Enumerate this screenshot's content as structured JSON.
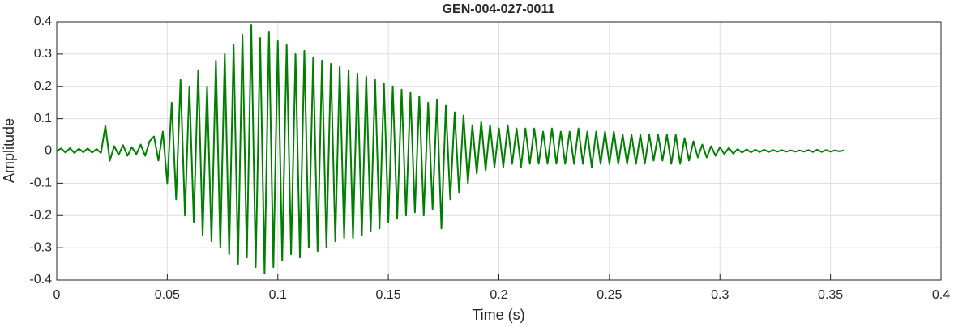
{
  "chart_data": {
    "type": "line",
    "title": "GEN-004-027-0011",
    "xlabel": "Time (s)",
    "ylabel": "Amplitude",
    "color": "#007f00",
    "grid": true,
    "xlim": [
      0,
      0.4
    ],
    "ylim": [
      -0.4,
      0.4
    ],
    "xticks": [
      0,
      0.05,
      0.1,
      0.15,
      0.2,
      0.25,
      0.3,
      0.35,
      0.4
    ],
    "yticks": [
      -0.4,
      -0.3,
      -0.2,
      -0.1,
      0,
      0.1,
      0.2,
      0.3,
      0.4
    ],
    "x": [
      0,
      0.002,
      0.004,
      0.006,
      0.008,
      0.01,
      0.012,
      0.014,
      0.016,
      0.018,
      0.02,
      0.022,
      0.024,
      0.026,
      0.028,
      0.03,
      0.032,
      0.034,
      0.036,
      0.038,
      0.04,
      0.042,
      0.044,
      0.046,
      0.048,
      0.05,
      0.052,
      0.054,
      0.056,
      0.058,
      0.06,
      0.062,
      0.064,
      0.066,
      0.068,
      0.07,
      0.072,
      0.074,
      0.076,
      0.078,
      0.08,
      0.082,
      0.084,
      0.086,
      0.088,
      0.09,
      0.092,
      0.094,
      0.096,
      0.098,
      0.1,
      0.102,
      0.104,
      0.106,
      0.108,
      0.11,
      0.112,
      0.114,
      0.116,
      0.118,
      0.12,
      0.122,
      0.124,
      0.126,
      0.128,
      0.13,
      0.132,
      0.134,
      0.136,
      0.138,
      0.14,
      0.142,
      0.144,
      0.146,
      0.148,
      0.15,
      0.152,
      0.154,
      0.156,
      0.158,
      0.16,
      0.162,
      0.164,
      0.166,
      0.168,
      0.17,
      0.172,
      0.174,
      0.176,
      0.178,
      0.18,
      0.182,
      0.184,
      0.186,
      0.188,
      0.19,
      0.192,
      0.194,
      0.196,
      0.198,
      0.2,
      0.202,
      0.204,
      0.206,
      0.208,
      0.21,
      0.212,
      0.214,
      0.216,
      0.218,
      0.22,
      0.222,
      0.224,
      0.226,
      0.228,
      0.23,
      0.232,
      0.234,
      0.236,
      0.238,
      0.24,
      0.242,
      0.244,
      0.246,
      0.248,
      0.25,
      0.252,
      0.254,
      0.256,
      0.258,
      0.26,
      0.262,
      0.264,
      0.266,
      0.268,
      0.27,
      0.272,
      0.274,
      0.276,
      0.278,
      0.28,
      0.282,
      0.284,
      0.286,
      0.288,
      0.29,
      0.292,
      0.294,
      0.296,
      0.298,
      0.3,
      0.302,
      0.304,
      0.306,
      0.308,
      0.31,
      0.312,
      0.314,
      0.316,
      0.318,
      0.32,
      0.322,
      0.324,
      0.326,
      0.328,
      0.33,
      0.332,
      0.334,
      0.336,
      0.338,
      0.34,
      0.342,
      0.344,
      0.346,
      0.348,
      0.35,
      0.352,
      0.354,
      0.356
    ],
    "values": [
      0,
      0.008,
      -0.005,
      0.009,
      -0.006,
      0.007,
      -0.004,
      0.008,
      -0.005,
      0.006,
      -0.006,
      0.078,
      -0.03,
      0.015,
      -0.012,
      0.018,
      -0.015,
      0.012,
      -0.01,
      0.02,
      -0.015,
      0.03,
      0.045,
      -0.03,
      0.06,
      -0.1,
      0.15,
      -0.15,
      0.22,
      -0.2,
      0.2,
      -0.22,
      0.25,
      -0.26,
      0.2,
      -0.28,
      0.28,
      -0.3,
      0.3,
      -0.32,
      0.33,
      -0.35,
      0.36,
      -0.33,
      0.39,
      -0.36,
      0.35,
      -0.38,
      0.37,
      -0.36,
      0.34,
      -0.34,
      0.33,
      -0.32,
      0.3,
      -0.33,
      0.31,
      -0.3,
      0.29,
      -0.31,
      0.28,
      -0.3,
      0.27,
      -0.28,
      0.26,
      -0.27,
      0.25,
      -0.27,
      0.24,
      -0.26,
      0.23,
      -0.25,
      0.22,
      -0.24,
      0.21,
      -0.22,
      0.2,
      -0.21,
      0.19,
      -0.2,
      0.18,
      -0.19,
      0.17,
      -0.2,
      0.15,
      -0.18,
      0.16,
      -0.24,
      0.14,
      -0.15,
      0.12,
      -0.13,
      0.11,
      -0.1,
      0.08,
      -0.07,
      0.09,
      -0.06,
      0.08,
      -0.05,
      0.07,
      -0.05,
      0.08,
      -0.04,
      0.07,
      -0.05,
      0.07,
      -0.04,
      0.07,
      -0.04,
      0.06,
      -0.04,
      0.07,
      -0.04,
      0.06,
      -0.04,
      0.06,
      -0.04,
      0.07,
      -0.04,
      0.06,
      -0.05,
      0.06,
      -0.04,
      0.06,
      -0.04,
      0.06,
      -0.04,
      0.05,
      -0.04,
      0.05,
      -0.04,
      0.05,
      -0.04,
      0.05,
      -0.03,
      0.05,
      -0.03,
      0.05,
      -0.04,
      0.05,
      -0.04,
      0.04,
      -0.03,
      0.03,
      -0.02,
      0.02,
      -0.02,
      0.015,
      -0.015,
      0.012,
      -0.01,
      0.01,
      -0.008,
      0.006,
      -0.005,
      0.005,
      -0.004,
      0.004,
      -0.003,
      0.004,
      -0.003,
      0.003,
      -0.002,
      0.003,
      -0.002,
      0.002,
      -0.002,
      0.002,
      -0.002,
      0.003,
      -0.003,
      0.004,
      -0.003,
      0.003,
      -0.002,
      0.002,
      -0.001,
      0.002
    ]
  }
}
